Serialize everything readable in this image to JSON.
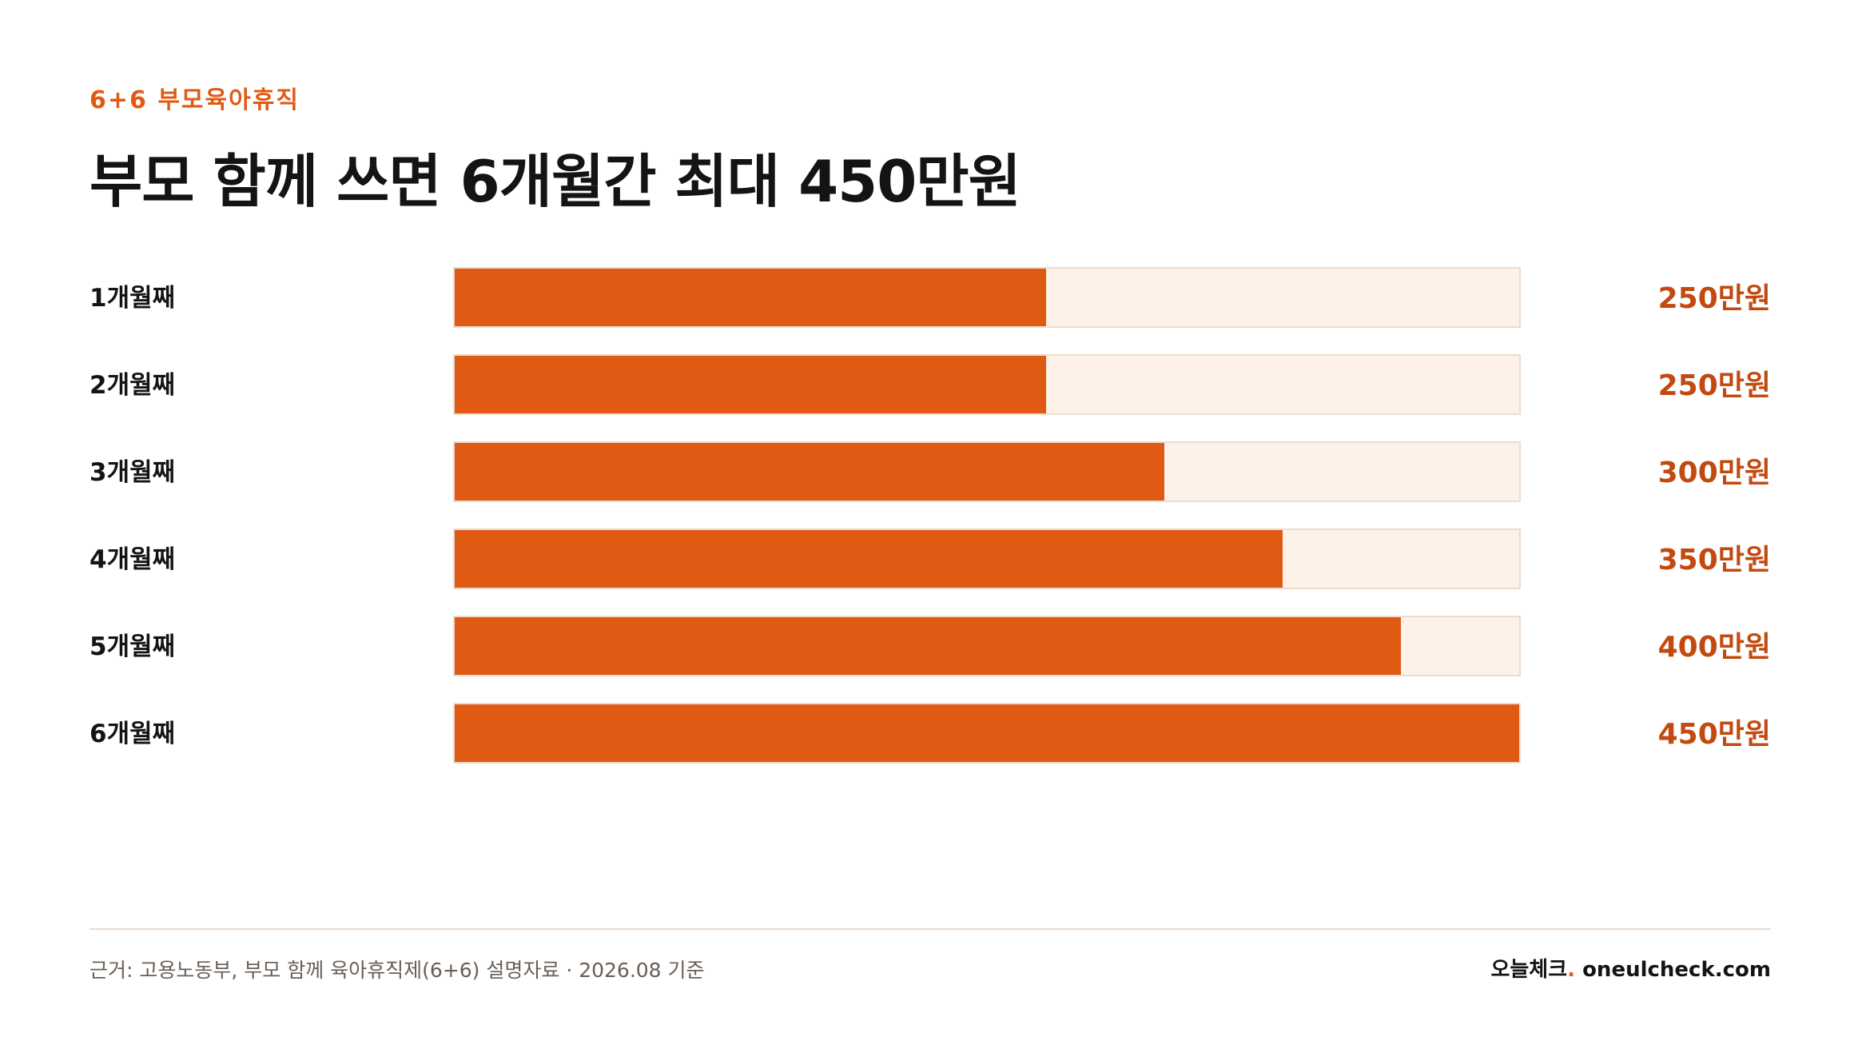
{
  "eyebrow": "6+6 부모육아휴직",
  "title": "부모 함께 쓰면 6개월간 최대 450만원",
  "colors": {
    "accent": "#e05a14",
    "track": "#fdf1e8",
    "track_border": "#ecdccd",
    "label": "#141414",
    "value": "#c24a10"
  },
  "chart_data": {
    "type": "bar",
    "orientation": "horizontal",
    "categories": [
      "1개월째",
      "2개월째",
      "3개월째",
      "4개월째",
      "5개월째",
      "6개월째"
    ],
    "values": [
      250,
      250,
      300,
      350,
      400,
      450
    ],
    "value_labels": [
      "250만원",
      "250만원",
      "300만원",
      "350만원",
      "400만원",
      "450만원"
    ],
    "xlim": [
      0,
      450
    ],
    "grid": false
  },
  "footer": {
    "source": "근거: 고용노동부, 부모 함께 육아휴직제(6+6) 설명자료 · 2026.08 기준",
    "brand_name": "오늘체크",
    "brand_dot": ".",
    "brand_domain": " oneulcheck.com"
  }
}
